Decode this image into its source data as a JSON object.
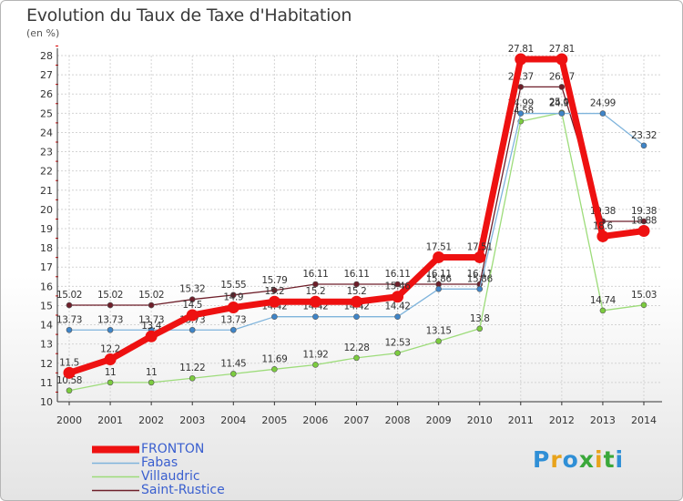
{
  "title": "Evolution du Taux de Taxe d'Habitation",
  "subtitle": "(en %)",
  "logo": {
    "text": "Proxiti",
    "colors": [
      "#2f8fd6",
      "#e8a31b",
      "#2f8fd6",
      "#3aa83a",
      "#e8a31b",
      "#3aa83a",
      "#2f8fd6"
    ]
  },
  "chart_data": {
    "type": "line",
    "x": [
      "2000",
      "2001",
      "2002",
      "2003",
      "2004",
      "2005",
      "2006",
      "2007",
      "2008",
      "2009",
      "2010",
      "2011",
      "2012",
      "2013",
      "2014"
    ],
    "yticks": [
      10,
      11,
      12,
      13,
      14,
      15,
      16,
      17,
      18,
      19,
      20,
      21,
      22,
      23,
      24,
      25,
      26,
      27,
      28
    ],
    "ylim": [
      10,
      28
    ],
    "grid": true,
    "legend_position": "bottom-left",
    "series": [
      {
        "name": "Saint-Rustice",
        "color": "#6e1f2a",
        "point_color": "#6e1f2a",
        "width": 1.3,
        "values": [
          15.02,
          15.02,
          15.02,
          15.32,
          15.55,
          15.79,
          16.11,
          16.11,
          16.11,
          16.11,
          16.11,
          26.37,
          26.37,
          19.38,
          19.38
        ],
        "labels": [
          "15.02",
          "15.02",
          "15.02",
          "15.32",
          "15.55",
          "15.79",
          "16.11",
          "16.11",
          "16.11",
          "16.11",
          "16.11",
          "26.37",
          "26.37",
          "19.38",
          "19.38"
        ]
      },
      {
        "name": "Villaudric",
        "color": "#9ddc7a",
        "point_color": "#7ccc3f",
        "width": 1.3,
        "values": [
          10.58,
          11,
          11,
          11.22,
          11.45,
          11.69,
          11.92,
          12.28,
          12.53,
          13.15,
          13.8,
          24.58,
          25.03,
          14.74,
          15.03
        ],
        "labels": [
          "10.58",
          "11",
          "11",
          "11.22",
          "11.45",
          "11.69",
          "11.92",
          "12.28",
          "12.53",
          "13.15",
          "13.8",
          "24.58",
          "25.03",
          "14.74",
          "15.03"
        ]
      },
      {
        "name": "Fabas",
        "color": "#7fb4dc",
        "point_color": "#3f85c8",
        "width": 1.3,
        "values": [
          13.73,
          13.73,
          13.73,
          13.73,
          13.73,
          14.42,
          14.42,
          14.42,
          14.42,
          15.86,
          15.86,
          24.99,
          24.99,
          24.99,
          23.32
        ],
        "labels": [
          "13.73",
          "13.73",
          "13.73",
          "13.73",
          "13.73",
          "14.42",
          "14.42",
          "14.42",
          "14.42",
          "15.86",
          "15.86",
          "24.99",
          "24.99",
          "24.99",
          "23.32"
        ]
      },
      {
        "name": "FRONTON",
        "color": "#ee1111",
        "point_color": "#ee1111",
        "width": 7,
        "values": [
          11.5,
          12.2,
          13.4,
          14.5,
          14.9,
          15.2,
          15.2,
          15.2,
          15.46,
          17.51,
          17.51,
          27.81,
          27.81,
          18.6,
          18.88
        ],
        "labels": [
          "11.5",
          "12.2",
          "13.4",
          "14.5",
          "14.9",
          "15.2",
          "15.2",
          "15.2",
          "15.46",
          "17.51",
          "17.51",
          "27.81",
          "27.81",
          "18.6",
          "18.88"
        ]
      }
    ],
    "legend": [
      {
        "name": "FRONTON",
        "color": "#ee1111",
        "width": 8
      },
      {
        "name": "Fabas",
        "color": "#7fb4dc",
        "width": 1.5
      },
      {
        "name": "Villaudric",
        "color": "#9ddc7a",
        "width": 1.5
      },
      {
        "name": "Saint-Rustice",
        "color": "#6e1f2a",
        "width": 1.5
      }
    ]
  }
}
